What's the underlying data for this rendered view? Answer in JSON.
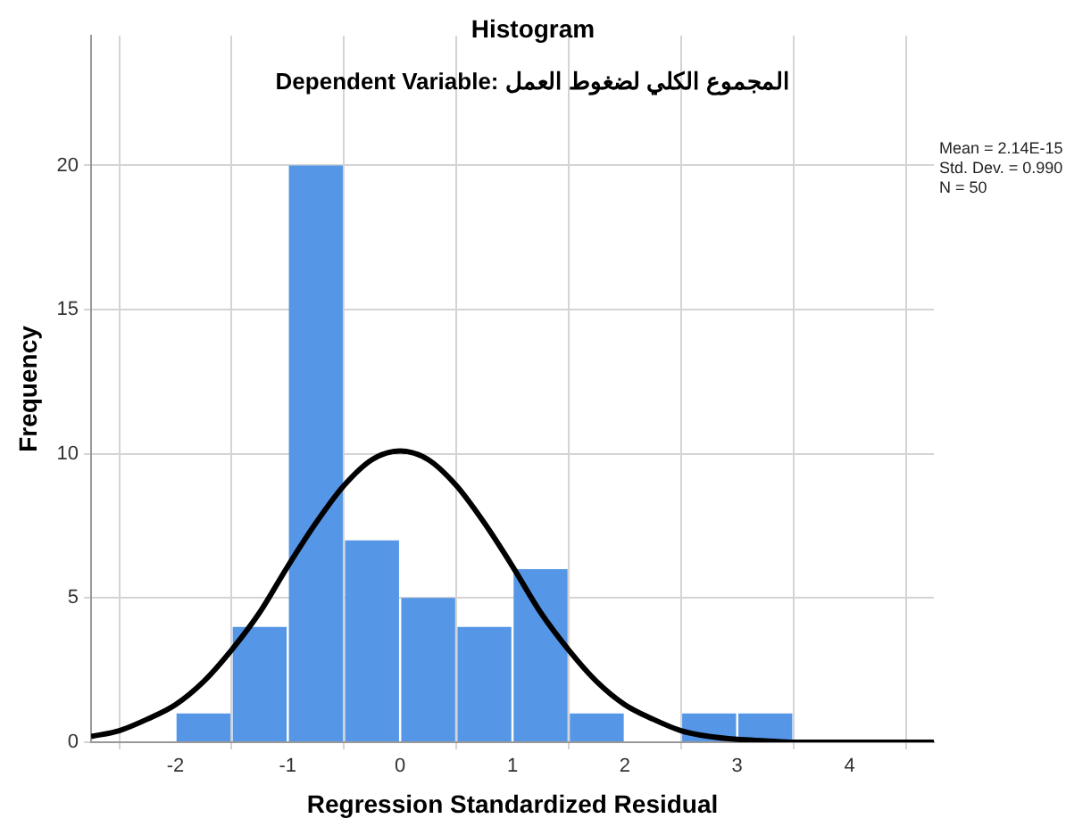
{
  "chart_data": {
    "type": "histogram",
    "title": "Histogram",
    "subtitle": "Dependent Variable: المجموع الكلي لضغوط العمل",
    "xlabel": "Regression Standardized Residual",
    "ylabel": "Frequency",
    "bins": [
      -2,
      -1.5,
      -1,
      -0.5,
      0,
      0.5,
      1,
      1.5,
      2,
      2.5,
      3,
      3.5
    ],
    "values": [
      1,
      4,
      20,
      7,
      5,
      4,
      6,
      1,
      0,
      1,
      1
    ],
    "color": "#5596e6",
    "series": [
      {
        "type": "line",
        "color": "#000000",
        "x": [
          -2.75,
          -2.5,
          -2.25,
          -2,
          -1.75,
          -1.5,
          -1.25,
          -1,
          -0.75,
          -0.5,
          -0.25,
          0,
          0.25,
          0.5,
          0.75,
          1,
          1.25,
          1.5,
          1.75,
          2,
          2.25,
          2.5,
          2.75,
          3,
          3.25,
          3.5,
          4,
          4.75
        ],
        "values": [
          0.2,
          0.4,
          0.8,
          1.3,
          2.1,
          3.2,
          4.5,
          6.1,
          7.6,
          8.9,
          9.8,
          10.1,
          9.8,
          8.9,
          7.6,
          6.1,
          4.5,
          3.2,
          2.1,
          1.3,
          0.8,
          0.4,
          0.2,
          0.1,
          0.05,
          0,
          0,
          0
        ]
      }
    ],
    "xlim": [
      -2.75,
      4.75
    ],
    "xticks": [
      -2,
      -1,
      0,
      1,
      2,
      3,
      4
    ],
    "ylim": [
      0,
      24.5
    ],
    "yticks": [
      0,
      5,
      10,
      15,
      20
    ],
    "grid": true,
    "legend": false,
    "marker": "none",
    "line_style": "solid",
    "annotations": [
      "Mean = 2.14E-15",
      "Std. Dev. = 0.990",
      "N = 50"
    ]
  }
}
